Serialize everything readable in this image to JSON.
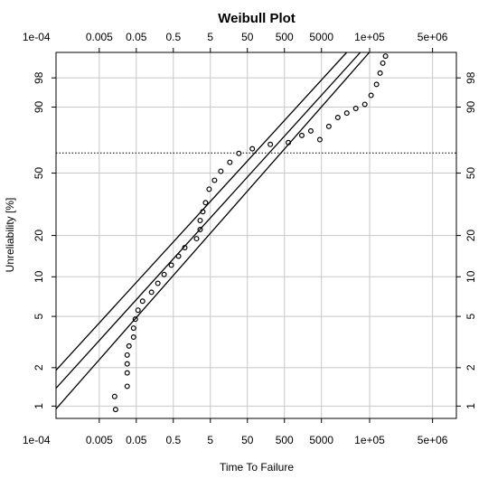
{
  "chart_data": {
    "type": "scatter",
    "title": "Weibull Plot",
    "x_label": "Time To Failure",
    "y_label": "Unreliability [%]",
    "xscale": "log",
    "yscale": "weibull",
    "xlim": [
      0.00034,
      22000000
    ],
    "ylim": [
      0.8,
      99.8
    ],
    "xticks": [
      {
        "value": 0.0001,
        "label": "1e-04"
      },
      0.005,
      0.05,
      0.5,
      5,
      50,
      500,
      5000,
      {
        "value": 100000,
        "label": "1e+05"
      },
      {
        "value": 5000000,
        "label": "5e+06"
      }
    ],
    "yticks": [
      1,
      2,
      5,
      10,
      20,
      50,
      90,
      98
    ],
    "grid": true,
    "reference_line": 63.2,
    "series": [
      {
        "type": "scatter",
        "color": "#000000",
        "x": [
          0.0138,
          0.013,
          0.0284,
          0.0284,
          0.0284,
          0.0284,
          0.0318,
          0.0422,
          0.0422,
          0.0471,
          0.0557,
          0.0738,
          0.129,
          0.191,
          0.282,
          0.442,
          0.692,
          1.02,
          2.12,
          2.65,
          2.65,
          3.13,
          3.71,
          4.63,
          6.49,
          9.59,
          16.8,
          29.4,
          67.9,
          208,
          637,
          1475,
          2582,
          4519,
          7907,
          13840,
          24210,
          42360,
          74130,
          109600,
          153500,
          191900,
          227000,
          268500
        ],
        "values": [
          0.94,
          1.19,
          1.43,
          1.82,
          2.14,
          2.51,
          2.95,
          3.46,
          4.06,
          4.76,
          5.58,
          6.54,
          7.64,
          8.93,
          10.4,
          12.2,
          14.2,
          16.4,
          19.0,
          22.0,
          25.4,
          29.1,
          33.3,
          40.4,
          45.6,
          51.2,
          57.0,
          62.9,
          66,
          68.9,
          70.1,
          74.7,
          77.5,
          72,
          80.2,
          85.1,
          87.3,
          89.4,
          91.1,
          94.2,
          96.9,
          98.6,
          99.4,
          99.7
        ]
      },
      {
        "type": "line",
        "color": "#000000",
        "x": [
          0.00034,
          24000
        ],
        "values": [
          1.91,
          99.8
        ]
      },
      {
        "type": "line",
        "color": "#000000",
        "x": [
          0.00034,
          56000
        ],
        "values": [
          1.38,
          99.8
        ]
      },
      {
        "type": "line",
        "color": "#000000",
        "x": [
          0.00034,
          98000
        ],
        "values": [
          0.95,
          99.8
        ]
      }
    ]
  }
}
